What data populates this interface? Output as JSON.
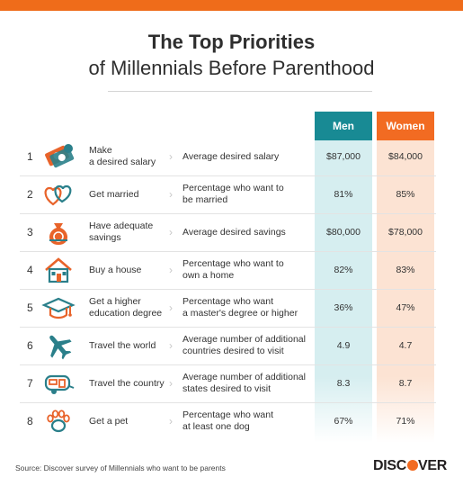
{
  "colors": {
    "accent_orange": "#ef6c1a",
    "men_teal": "#188a94",
    "men_tint": "#d6eef0",
    "women_orange": "#f26b22",
    "women_tint": "#fce3d3",
    "icon_orange": "#e8632a",
    "icon_teal": "#2a7f8a"
  },
  "title": {
    "line1": "The Top Priorities",
    "line2": "of Millennials Before Parenthood"
  },
  "columns": {
    "men": "Men",
    "women": "Women"
  },
  "rows": [
    {
      "num": "1",
      "icon": "money-icon",
      "priority": "Make\na desired salary",
      "metric": "Average desired salary",
      "men": "$87,000",
      "women": "$84,000"
    },
    {
      "num": "2",
      "icon": "hearts-icon",
      "priority": "Get married",
      "metric": "Percentage who want to\nbe married",
      "men": "81%",
      "women": "85%"
    },
    {
      "num": "3",
      "icon": "money-bag-icon",
      "priority": "Have adequate\nsavings",
      "metric": "Average desired savings",
      "men": "$80,000",
      "women": "$78,000"
    },
    {
      "num": "4",
      "icon": "house-icon",
      "priority": "Buy a house",
      "metric": "Percentage who want to\nown a home",
      "men": "82%",
      "women": "83%"
    },
    {
      "num": "5",
      "icon": "graduation-cap-icon",
      "priority": "Get a higher\neducation degree",
      "metric": "Percentage who want\na master's degree or higher",
      "men": "36%",
      "women": "47%"
    },
    {
      "num": "6",
      "icon": "airplane-icon",
      "priority": "Travel the world",
      "metric": "Average number of additional\ncountries desired to visit",
      "men": "4.9",
      "women": "4.7"
    },
    {
      "num": "7",
      "icon": "camper-icon",
      "priority": "Travel the country",
      "metric": "Average number of additional\nstates desired to visit",
      "men": "8.3",
      "women": "8.7"
    },
    {
      "num": "8",
      "icon": "paw-icon",
      "priority": "Get a pet",
      "metric": "Percentage who want\nat least one dog",
      "men": "67%",
      "women": "71%"
    }
  ],
  "footer": {
    "source": "Source: Discover survey of Millennials who want to be parents",
    "logo_left": "DISC",
    "logo_right": "VER"
  }
}
